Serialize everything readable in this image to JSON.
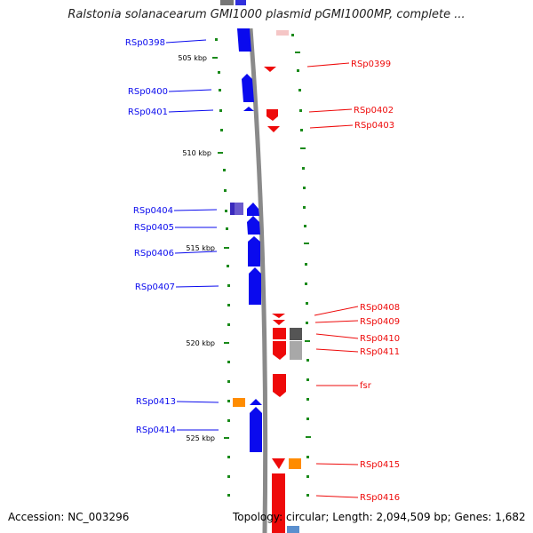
{
  "title": "Ralstonia solanacearum GMI1000 plasmid pGMI1000MP, complete ...",
  "footer": {
    "accession": "Accession: NC_003296",
    "topology": "Topology: circular; Length: 2,094,509 bp; Genes: 1,682"
  },
  "colors": {
    "minus_strand": "#0a0aee",
    "plus_strand": "#ee0a0a",
    "rna": "#ff8c00",
    "tick": "#1a8a1a",
    "backbone": "#8a8a8a"
  },
  "scale_labels": [
    "505 kbp",
    "510 kbp",
    "515 kbp",
    "520 kbp",
    "525 kbp"
  ],
  "left_labels": [
    "RSp0398",
    "RSp0400",
    "RSp0401",
    "RSp0404",
    "RSp0405",
    "RSp0406",
    "RSp0407",
    "RSp0413",
    "RSp0414"
  ],
  "right_labels": [
    "RSp0399",
    "RSp0402",
    "RSp0403",
    "RSp0408",
    "RSp0409",
    "RSp0410",
    "RSp0411",
    "fsr",
    "RSp0415",
    "RSp0416"
  ]
}
